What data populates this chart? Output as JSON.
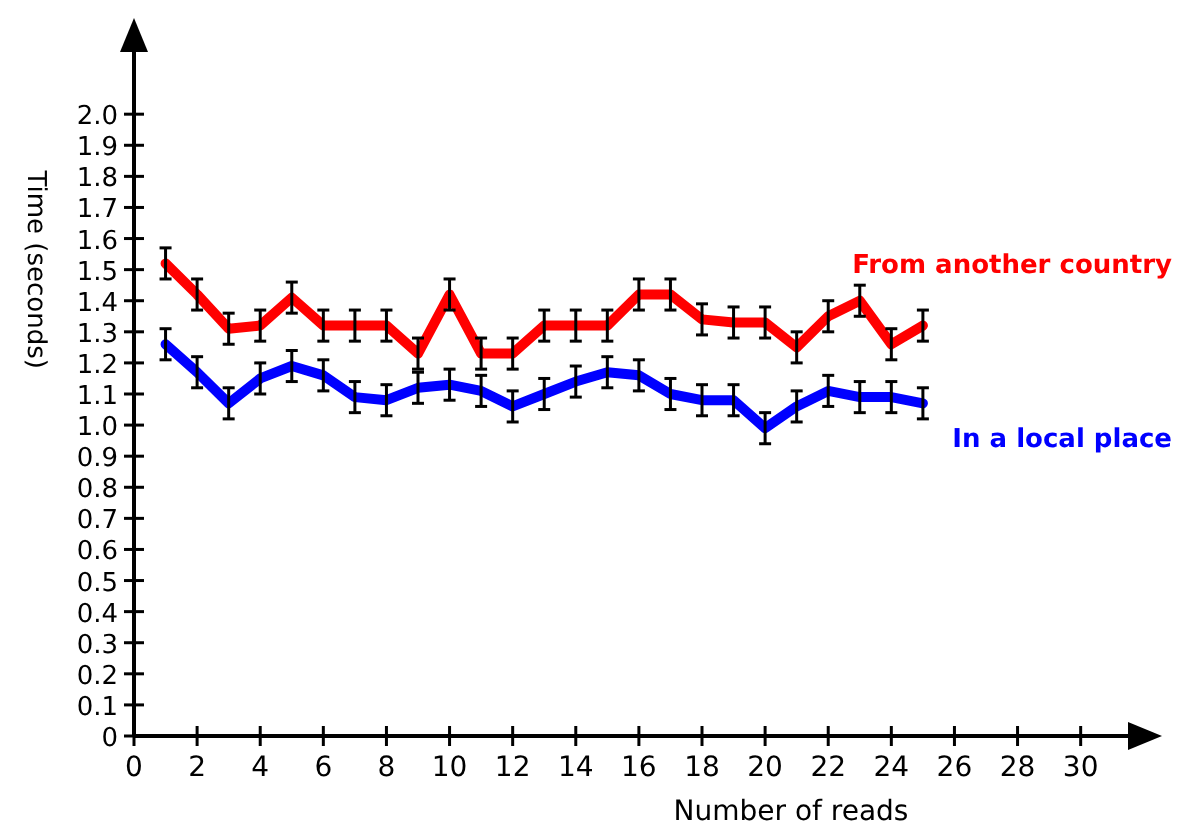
{
  "chart_data": {
    "type": "line",
    "xlabel": "Number of reads",
    "ylabel": "Time (seconds)",
    "x": [
      1,
      2,
      3,
      4,
      5,
      6,
      7,
      8,
      9,
      10,
      11,
      12,
      13,
      14,
      15,
      16,
      17,
      18,
      19,
      20,
      21,
      22,
      23,
      24,
      25
    ],
    "xlim": [
      0,
      31.5
    ],
    "xticks": [
      0,
      2,
      4,
      6,
      8,
      10,
      12,
      14,
      16,
      18,
      20,
      22,
      24,
      26,
      28,
      30
    ],
    "ylim": [
      0,
      2.2
    ],
    "yticks": [
      0,
      0.1,
      0.2,
      0.3,
      0.4,
      0.5,
      0.6,
      0.7,
      0.8,
      0.9,
      {
        "value": 1,
        "label": "1.0"
      },
      1.1,
      1.2,
      1.3,
      1.4,
      1.5,
      1.6,
      1.7,
      1.8,
      1.9,
      {
        "value": 2,
        "label": "2.0"
      }
    ],
    "grid": false,
    "line_style": "solid",
    "marker": "none",
    "series": [
      {
        "name": "From another country",
        "color": "#ff0000",
        "values": [
          1.52,
          1.42,
          1.31,
          1.32,
          1.41,
          1.32,
          1.32,
          1.32,
          1.23,
          1.42,
          1.23,
          1.23,
          1.32,
          1.32,
          1.32,
          1.42,
          1.42,
          1.34,
          1.33,
          1.33,
          1.25,
          1.35,
          1.4,
          1.26,
          1.32
        ],
        "errors": [
          0.05,
          0.05,
          0.05,
          0.05,
          0.05,
          0.05,
          0.05,
          0.05,
          0.05,
          0.05,
          0.05,
          0.05,
          0.05,
          0.05,
          0.05,
          0.05,
          0.05,
          0.05,
          0.05,
          0.05,
          0.05,
          0.05,
          0.05,
          0.05,
          0.05
        ]
      },
      {
        "name": "In a local place",
        "color": "#0000ff",
        "values": [
          1.26,
          1.17,
          1.07,
          1.15,
          1.19,
          1.16,
          1.09,
          1.08,
          1.12,
          1.13,
          1.11,
          1.06,
          1.1,
          1.14,
          1.17,
          1.16,
          1.1,
          1.08,
          1.08,
          0.99,
          1.06,
          1.11,
          1.09,
          1.09,
          1.07
        ],
        "errors": [
          0.05,
          0.05,
          0.05,
          0.05,
          0.05,
          0.05,
          0.05,
          0.05,
          0.05,
          0.05,
          0.05,
          0.05,
          0.05,
          0.05,
          0.05,
          0.05,
          0.05,
          0.05,
          0.05,
          0.05,
          0.05,
          0.05,
          0.05,
          0.05,
          0.05
        ]
      }
    ]
  }
}
